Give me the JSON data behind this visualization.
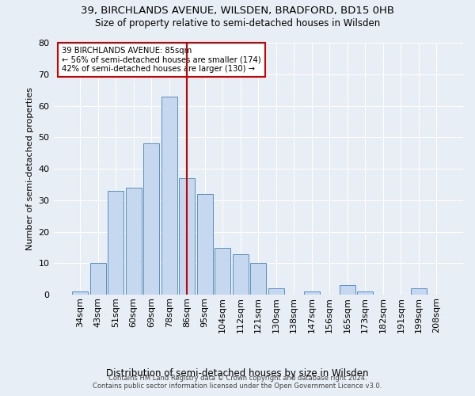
{
  "title1": "39, BIRCHLANDS AVENUE, WILSDEN, BRADFORD, BD15 0HB",
  "title2": "Size of property relative to semi-detached houses in Wilsden",
  "xlabel": "Distribution of semi-detached houses by size in Wilsden",
  "ylabel": "Number of semi-detached properties",
  "footnote1": "Contains HM Land Registry data © Crown copyright and database right 2024.",
  "footnote2": "Contains public sector information licensed under the Open Government Licence v3.0.",
  "categories": [
    "34sqm",
    "43sqm",
    "51sqm",
    "60sqm",
    "69sqm",
    "78sqm",
    "86sqm",
    "95sqm",
    "104sqm",
    "112sqm",
    "121sqm",
    "130sqm",
    "138sqm",
    "147sqm",
    "156sqm",
    "165sqm",
    "173sqm",
    "182sqm",
    "191sqm",
    "199sqm",
    "208sqm"
  ],
  "values": [
    1,
    10,
    33,
    34,
    48,
    63,
    37,
    32,
    15,
    13,
    10,
    2,
    0,
    1,
    0,
    3,
    1,
    0,
    0,
    2,
    0
  ],
  "bar_color": "#c5d8f0",
  "bar_edge_color": "#5a8fc0",
  "highlight_index": 6,
  "highlight_line_color": "#cc0000",
  "property_label": "39 BIRCHLANDS AVENUE: 85sqm",
  "annotation_line1": "← 56% of semi-detached houses are smaller (174)",
  "annotation_line2": "42% of semi-detached houses are larger (130) →",
  "annotation_box_color": "#cc0000",
  "bg_color": "#e8eef5",
  "ylim": [
    0,
    80
  ],
  "yticks": [
    0,
    10,
    20,
    30,
    40,
    50,
    60,
    70,
    80
  ]
}
